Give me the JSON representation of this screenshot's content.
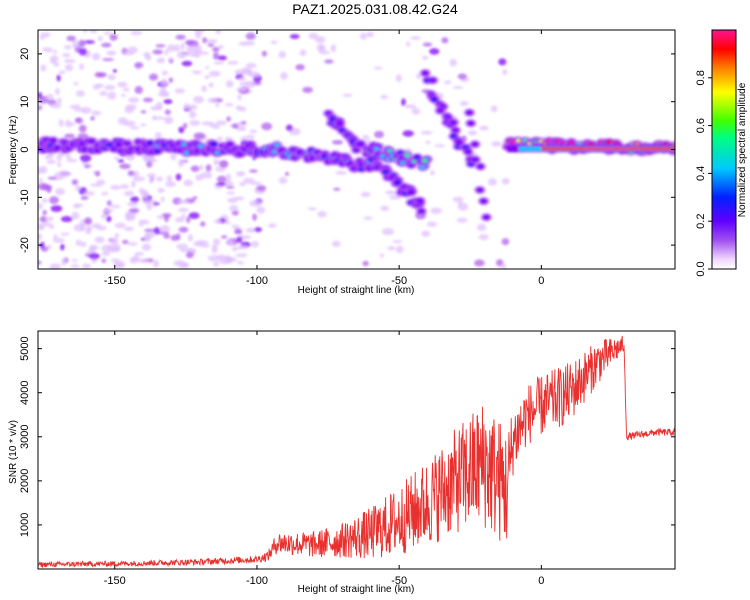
{
  "title": "PAZ1.2025.031.08.42.G24",
  "chart_data": [
    {
      "type": "heatmap",
      "xlabel": "Height of straight line (km)",
      "ylabel": "Frequency (Hz)",
      "xlim": [
        -177,
        47
      ],
      "ylim": [
        -25,
        25
      ],
      "xticks": [
        -150,
        -100,
        -50,
        0
      ],
      "yticks": [
        -20,
        -10,
        0,
        10,
        20
      ],
      "colorbar": {
        "label": "Normalized spectral amplitude",
        "range": [
          0,
          1
        ],
        "ticks": [
          "0.0",
          "0.2",
          "0.4",
          "0.6",
          "0.8"
        ],
        "colormap": [
          "#f0d8ff",
          "#b060f0",
          "#8000ff",
          "#0020ff",
          "#00c8ff",
          "#00ff80",
          "#40ff00",
          "#ffff00",
          "#ff8000",
          "#ff0000",
          "#ff1493"
        ]
      },
      "features": [
        {
          "x": -177,
          "y": 1.0,
          "x_end": -98,
          "y_end": 0.0,
          "amplitude": 0.25
        },
        {
          "x": -98,
          "y": 0.5,
          "x_end": -60,
          "y_end": -3.5,
          "amplitude": 0.3
        },
        {
          "x": -75,
          "y": 7.0,
          "x_end": -42,
          "y_end": -12.0,
          "amplitude": 0.22
        },
        {
          "x": -60,
          "y": 0.0,
          "x_end": -40,
          "y_end": -3.0,
          "amplitude": 0.35
        },
        {
          "x": -40,
          "y": 15.0,
          "x_end": -25,
          "y_end": -3.0,
          "amplitude": 0.22
        },
        {
          "x": -25,
          "y": 8.0,
          "x_end": -20,
          "y_end": -14.0,
          "amplitude": 0.2
        },
        {
          "x": -12,
          "y": 1.0,
          "x_end": 47,
          "y_end": 0.2,
          "amplitude": 0.9
        }
      ]
    },
    {
      "type": "line",
      "xlabel": "Height of straight line (km)",
      "ylabel": "SNR (10 * v/v)",
      "xlim": [
        -177,
        47
      ],
      "ylim": [
        0,
        5400
      ],
      "xticks": [
        -150,
        -100,
        -50,
        0
      ],
      "yticks": [
        1000,
        2000,
        3000,
        4000,
        5000
      ],
      "color": "#e8302e",
      "series": [
        {
          "name": "",
          "x": [
            -177,
            -150,
            -120,
            -100,
            -96,
            -93,
            -80,
            -70,
            -60,
            -50,
            -40,
            -30,
            -20,
            -12,
            -10,
            -5,
            0,
            10,
            20,
            29,
            30,
            40,
            47
          ],
          "y": [
            100,
            120,
            160,
            220,
            300,
            600,
            550,
            650,
            800,
            1100,
            1500,
            2000,
            2400,
            1800,
            2900,
            3500,
            3700,
            4000,
            4700,
            5100,
            3000,
            3100,
            3100
          ],
          "y_amplitude": [
            60,
            60,
            70,
            80,
            120,
            250,
            300,
            400,
            600,
            800,
            1000,
            1200,
            1500,
            1400,
            800,
            700,
            700,
            700,
            500,
            200,
            80,
            80,
            80
          ]
        }
      ]
    }
  ]
}
